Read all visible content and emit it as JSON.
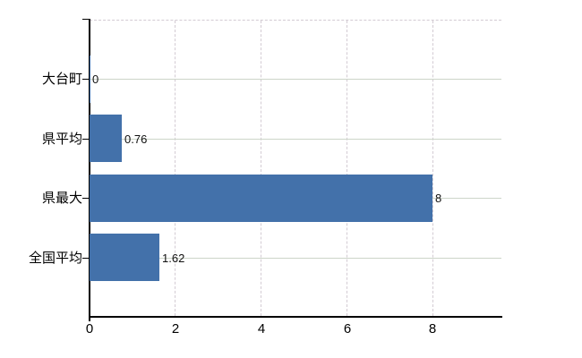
{
  "chart_data": {
    "type": "bar",
    "orientation": "horizontal",
    "title": "",
    "xlabel": "",
    "ylabel": "",
    "categories": [
      "大台町",
      "県平均",
      "県最大",
      "全国平均"
    ],
    "values": [
      0,
      0.76,
      8,
      1.62
    ],
    "value_labels": [
      "0",
      "0.76",
      "8",
      "1.62"
    ],
    "x_ticks": [
      0,
      2,
      4,
      6,
      8
    ],
    "x_tick_labels": [
      "0",
      "2",
      "4",
      "6",
      "8"
    ],
    "xlim": [
      0,
      9.6
    ],
    "grid": "on",
    "legend": "none",
    "bar_color": "#4371aa",
    "h_gridline_color": "#cdd5c9",
    "v_gridline_color": "#d3cbd3",
    "axis_color": "#000000",
    "label_color": "#000000",
    "background_color": "#ffffff"
  }
}
